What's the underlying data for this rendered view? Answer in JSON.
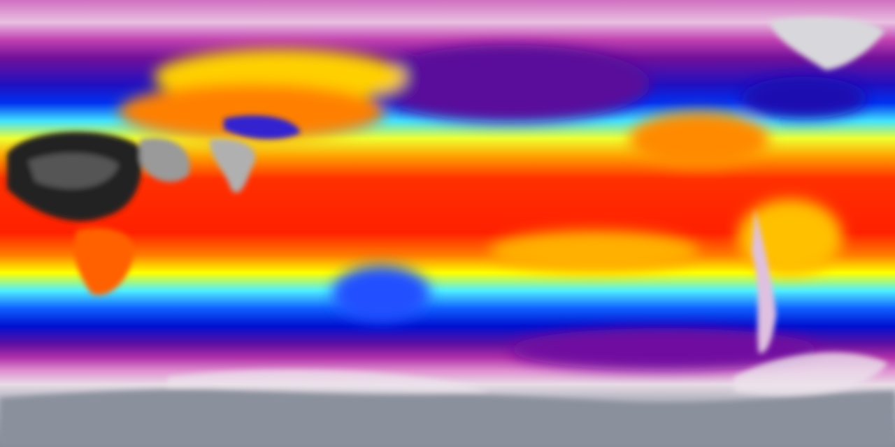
{
  "map": {
    "projection": "equirectangular",
    "type": "global-temperature-heatmap",
    "colors": {
      "coldest": "#8a8f9a",
      "very_cold": "#e8dfe6",
      "cold": "#c040b0",
      "cool": "#5a0fa0",
      "chilly": "#0010e0",
      "mild": "#40e8ff",
      "warm": "#ffff00",
      "hot": "#ff2000",
      "hottest": "#101010"
    }
  }
}
